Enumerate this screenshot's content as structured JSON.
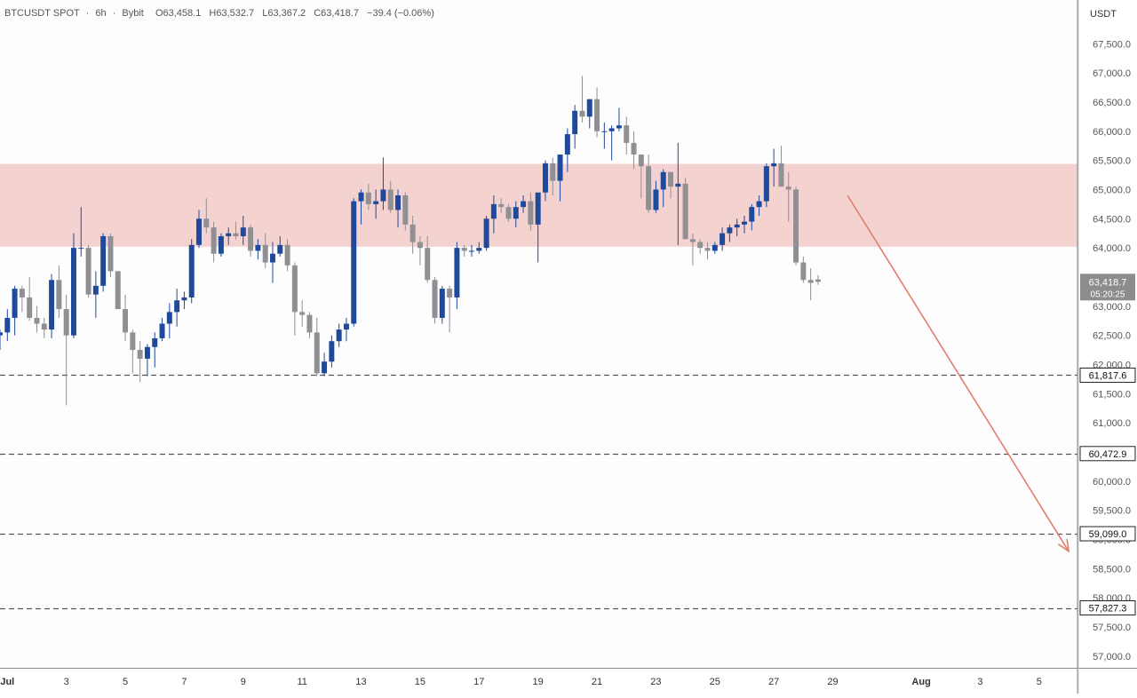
{
  "header": {
    "symbol": "BTCUSDT SPOT",
    "sep": "·",
    "interval": "6h",
    "exchange": "Bybit",
    "open": "O63,458.1",
    "high": "H63,532.7",
    "low": "L63,367.2",
    "close": "C63,418.7",
    "change": "−39.4 (−0.06%)"
  },
  "colors": {
    "background": "#fdfdfd",
    "up": "#1f4a9c",
    "down": "#8f8f94",
    "zone": "#f4d2cf",
    "arrow": "#e07f6b",
    "dashed": "#555555",
    "axis_text": "#555555"
  },
  "chart_data": {
    "type": "candlestick",
    "title": "BTCUSDT SPOT · 6h · Bybit",
    "currency_label": "USDT",
    "ylim": [
      56800,
      68250
    ],
    "y_ticks": [
      57000,
      57500,
      58000,
      58500,
      59000,
      59500,
      60000,
      60500,
      61000,
      61500,
      62000,
      62500,
      63000,
      63500,
      64000,
      64500,
      65000,
      65500,
      66000,
      66500,
      67000,
      67500
    ],
    "y_tick_labels": [
      "57,000.0",
      "57,500.0",
      "58,000.0",
      "58,500.0",
      "59,000.0",
      "59,500.0",
      "60,000.0",
      "60,500.0",
      "61,000.0",
      "61,500.0",
      "62,000.0",
      "62,500.0",
      "63,000.0",
      "63,500.0",
      "64,000.0",
      "64,500.0",
      "65,000.0",
      "65,500.0",
      "66,000.0",
      "66,500.0",
      "67,000.0",
      "67,500.0"
    ],
    "x_labels": [
      {
        "label": "Jul",
        "day": 1
      },
      {
        "label": "3",
        "day": 3
      },
      {
        "label": "5",
        "day": 5
      },
      {
        "label": "7",
        "day": 7
      },
      {
        "label": "9",
        "day": 9
      },
      {
        "label": "11",
        "day": 11
      },
      {
        "label": "13",
        "day": 13
      },
      {
        "label": "15",
        "day": 15
      },
      {
        "label": "17",
        "day": 17
      },
      {
        "label": "19",
        "day": 19
      },
      {
        "label": "21",
        "day": 21
      },
      {
        "label": "23",
        "day": 23
      },
      {
        "label": "25",
        "day": 25
      },
      {
        "label": "27",
        "day": 27
      },
      {
        "label": "29",
        "day": 29
      },
      {
        "label": "Aug",
        "day": 32
      },
      {
        "label": "3",
        "day": 34
      },
      {
        "label": "5",
        "day": 36
      }
    ],
    "x_range_days": [
      0.75,
      37.3
    ],
    "resistance_zone": [
      64020,
      65440
    ],
    "levels": [
      {
        "price": 61817.6,
        "label": "61,817.6"
      },
      {
        "price": 60472.9,
        "label": "60,472.9"
      },
      {
        "price": 59099.0,
        "label": "59,099.0"
      },
      {
        "price": 57827.3,
        "label": "57,827.3"
      }
    ],
    "current_price": {
      "label": "63,418.7",
      "countdown": "05:20:25",
      "price": 63418.7
    },
    "projection_arrow": {
      "from": {
        "day": 29.5,
        "price": 64900
      },
      "to": {
        "day": 37.0,
        "price": 58800
      }
    },
    "candles_ohlc": [
      [
        60430,
        60500,
        59650,
        59700
      ],
      [
        59700,
        59950,
        58950,
        59050
      ],
      [
        59050,
        59150,
        58150,
        58300
      ],
      [
        58300,
        58750,
        58150,
        58600
      ],
      [
        58600,
        59100,
        57800,
        59050
      ],
      [
        59050,
        59100,
        58400,
        58600
      ],
      [
        58600,
        60250,
        58350,
        60200
      ],
      [
        60200,
        60700,
        59950,
        60050
      ],
      [
        60050,
        60750,
        59850,
        60500
      ],
      [
        60500,
        61500,
        60450,
        61400
      ],
      [
        61400,
        62000,
        61100,
        61700
      ],
      [
        61700,
        62050,
        61500,
        61850
      ],
      [
        61650,
        61900,
        61400,
        61550
      ],
      [
        61550,
        62100,
        61350,
        61950
      ],
      [
        61950,
        62500,
        61750,
        62250
      ],
      [
        62250,
        62300,
        61900,
        62050
      ],
      [
        62050,
        62600,
        61950,
        62400
      ],
      [
        62400,
        62800,
        62200,
        62500
      ],
      [
        62500,
        62600,
        62250,
        62550
      ],
      [
        62550,
        62950,
        62400,
        62800
      ],
      [
        62800,
        63350,
        62500,
        63300
      ],
      [
        63300,
        63350,
        62900,
        63150
      ],
      [
        63150,
        63500,
        62750,
        62800
      ],
      [
        62800,
        63000,
        62550,
        62700
      ],
      [
        62700,
        62800,
        62450,
        62600
      ],
      [
        62600,
        63550,
        62450,
        63450
      ],
      [
        63450,
        63700,
        62800,
        62950
      ],
      [
        62950,
        63200,
        61300,
        62500
      ],
      [
        62500,
        64250,
        62450,
        64000
      ],
      [
        64000,
        64700,
        63850,
        64000
      ],
      [
        64000,
        64050,
        63150,
        63200
      ],
      [
        63200,
        63600,
        62800,
        63350
      ],
      [
        63350,
        64250,
        63250,
        64200
      ],
      [
        64200,
        64250,
        63500,
        63600
      ],
      [
        63600,
        63600,
        63000,
        62950
      ],
      [
        62950,
        63200,
        62400,
        62550
      ],
      [
        62550,
        62600,
        61850,
        62250
      ],
      [
        62250,
        62400,
        61700,
        62100
      ],
      [
        62100,
        62350,
        61800,
        62300
      ],
      [
        62300,
        62550,
        61950,
        62450
      ],
      [
        62450,
        62800,
        62400,
        62700
      ],
      [
        62700,
        63050,
        62450,
        62900
      ],
      [
        62900,
        63300,
        62650,
        63100
      ],
      [
        63100,
        63250,
        62950,
        63150
      ],
      [
        63150,
        64150,
        63050,
        64050
      ],
      [
        64050,
        64650,
        64000,
        64500
      ],
      [
        64500,
        64850,
        64250,
        64350
      ],
      [
        64350,
        64450,
        63750,
        63900
      ],
      [
        63900,
        64250,
        63850,
        64200
      ],
      [
        64200,
        64350,
        64050,
        64250
      ],
      [
        64250,
        64450,
        64150,
        64200
      ],
      [
        64200,
        64550,
        64050,
        64350
      ],
      [
        64350,
        64400,
        63850,
        63950
      ],
      [
        63950,
        64150,
        63800,
        64050
      ],
      [
        64050,
        64250,
        63650,
        63750
      ],
      [
        63750,
        64100,
        63400,
        63900
      ],
      [
        63900,
        64200,
        63850,
        64050
      ],
      [
        64050,
        64150,
        63600,
        63700
      ],
      [
        63700,
        63750,
        62500,
        62900
      ],
      [
        62900,
        63100,
        62650,
        62850
      ],
      [
        62850,
        62900,
        62450,
        62550
      ],
      [
        62550,
        62800,
        61800,
        61850
      ],
      [
        61850,
        62200,
        61800,
        62050
      ],
      [
        62050,
        62500,
        61950,
        62400
      ],
      [
        62400,
        62700,
        62300,
        62600
      ],
      [
        62600,
        62800,
        62400,
        62700
      ],
      [
        62700,
        64850,
        62650,
        64800
      ],
      [
        64800,
        65000,
        64400,
        64950
      ],
      [
        64950,
        65100,
        64650,
        64750
      ],
      [
        64750,
        65000,
        64500,
        64800
      ],
      [
        64800,
        65550,
        64650,
        65000
      ],
      [
        65000,
        65150,
        64600,
        64650
      ],
      [
        64650,
        65000,
        64350,
        64900
      ],
      [
        64900,
        64950,
        64300,
        64400
      ],
      [
        64400,
        64550,
        63900,
        64100
      ],
      [
        64100,
        64200,
        63700,
        64000
      ],
      [
        64000,
        64200,
        63400,
        63450
      ],
      [
        63450,
        63500,
        62700,
        62800
      ],
      [
        62800,
        63350,
        62700,
        63300
      ],
      [
        63300,
        63350,
        62550,
        63150
      ],
      [
        63150,
        64100,
        62950,
        64000
      ],
      [
        64000,
        64050,
        63850,
        63950
      ],
      [
        63950,
        64050,
        63850,
        63950
      ],
      [
        63950,
        64100,
        63900,
        64000
      ],
      [
        64000,
        64550,
        63950,
        64500
      ],
      [
        64500,
        64900,
        64250,
        64750
      ],
      [
        64750,
        64850,
        64600,
        64700
      ],
      [
        64700,
        64750,
        64450,
        64500
      ],
      [
        64500,
        64800,
        64350,
        64700
      ],
      [
        64700,
        64900,
        64600,
        64800
      ],
      [
        64800,
        64950,
        64300,
        64400
      ],
      [
        64400,
        64900,
        63750,
        64950
      ],
      [
        64950,
        65500,
        64800,
        65450
      ],
      [
        65450,
        65550,
        64900,
        65150
      ],
      [
        65150,
        65600,
        64800,
        65600
      ],
      [
        65600,
        66050,
        65300,
        65950
      ],
      [
        65950,
        66450,
        65700,
        66350
      ],
      [
        66350,
        66950,
        66150,
        66250
      ],
      [
        66250,
        66550,
        66050,
        66550
      ],
      [
        66550,
        66750,
        65900,
        66000
      ],
      [
        66000,
        66150,
        65700,
        66000
      ],
      [
        66000,
        66100,
        65500,
        66050
      ],
      [
        66050,
        66400,
        66000,
        66100
      ],
      [
        66100,
        66250,
        65600,
        65800
      ],
      [
        65800,
        66000,
        65350,
        65600
      ],
      [
        65600,
        65600,
        64850,
        65400
      ],
      [
        65400,
        65600,
        64600,
        64650
      ],
      [
        64650,
        65150,
        64600,
        65000
      ],
      [
        65000,
        65350,
        64700,
        65300
      ],
      [
        65300,
        65300,
        64850,
        65050
      ],
      [
        65050,
        65800,
        64050,
        65100
      ],
      [
        65100,
        65200,
        64150,
        64150
      ],
      [
        64150,
        64250,
        63700,
        64100
      ],
      [
        64100,
        64150,
        63900,
        64000
      ],
      [
        64000,
        64100,
        63800,
        63950
      ],
      [
        63950,
        64100,
        63900,
        64050
      ],
      [
        64050,
        64350,
        63950,
        64250
      ],
      [
        64250,
        64400,
        64100,
        64350
      ],
      [
        64350,
        64500,
        64200,
        64400
      ],
      [
        64400,
        64550,
        64250,
        64450
      ],
      [
        64450,
        64750,
        64300,
        64700
      ],
      [
        64700,
        64900,
        64550,
        64800
      ],
      [
        64800,
        65450,
        64700,
        65400
      ],
      [
        65400,
        65700,
        65050,
        65450
      ],
      [
        65450,
        65750,
        65200,
        65050
      ],
      [
        65050,
        65300,
        64450,
        65000
      ],
      [
        65000,
        65050,
        63700,
        63750
      ],
      [
        63750,
        63850,
        63400,
        63450
      ],
      [
        63450,
        63650,
        63100,
        63400
      ],
      [
        63458.1,
        63532.7,
        63367.2,
        63418.7
      ]
    ]
  }
}
